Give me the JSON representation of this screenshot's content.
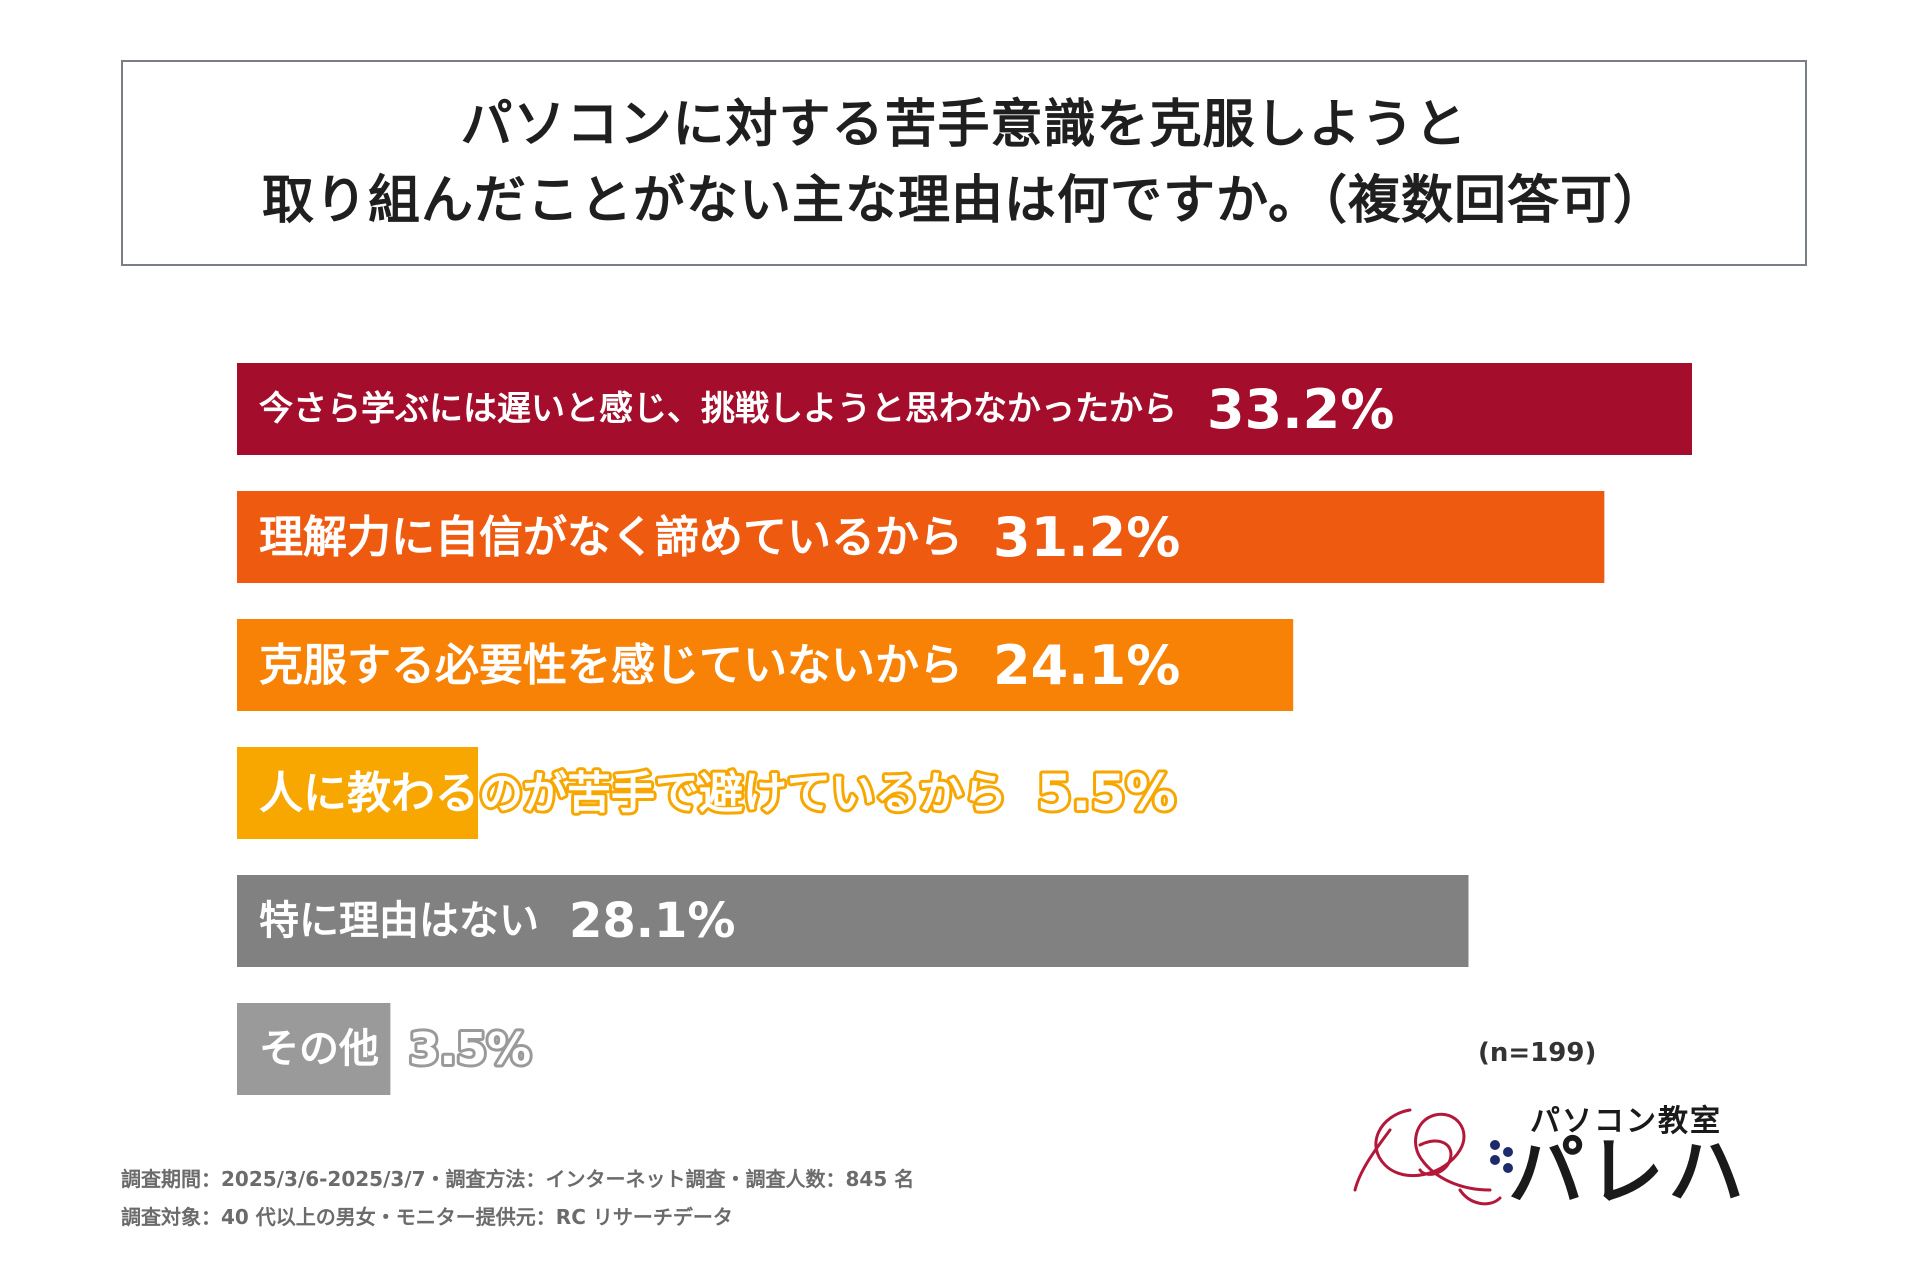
{
  "chart_data": {
    "type": "bar",
    "orientation": "horizontal",
    "title_lines": [
      "パソコンに対する苦手意識を克服しようと",
      "取り組んだことがない主な理由は何ですか。（複数回答可）"
    ],
    "categories": [
      "今さら学ぶには遅いと感じ、挑戦しようと思わなかったから",
      "理解力に自信がなく諦めているから",
      "克服する必要性を感じていないから",
      "人に教わるのが苦手で避けているから",
      "特に理由はない",
      "その他"
    ],
    "values": [
      33.2,
      31.2,
      24.1,
      5.5,
      28.1,
      3.5
    ],
    "value_labels": [
      "33.2%",
      "31.2%",
      "24.1%",
      "5.5%",
      "28.1%",
      "3.5%"
    ],
    "colors": [
      "#a50d2c",
      "#ee5a0f",
      "#f88206",
      "#f7a700",
      "#818181",
      "#9a9a9a"
    ],
    "xlim": [
      0,
      33.2
    ],
    "sample_size": "(n=199)"
  },
  "footnotes": [
    "調査期間：2025/3/6-2025/3/7・調査方法：インターネット調査・調査人数：845 名",
    "調査対象：40 代以上の男女・モニター提供元：RC リサーチデータ"
  ],
  "logo": {
    "subtitle": "パソコン教室",
    "name": "パレハ",
    "accent_color": "#b3173a"
  }
}
